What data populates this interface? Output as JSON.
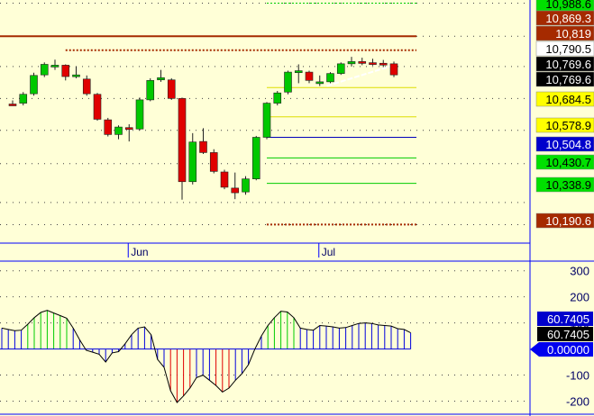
{
  "chart_data": [
    {
      "type": "candlestick",
      "x_ticks": [
        "Jun",
        "Jul"
      ],
      "ylim": [
        10130,
        11000
      ],
      "grid": true,
      "candles": [
        {
          "o": 10625,
          "h": 10638,
          "l": 10618,
          "c": 10622
        },
        {
          "o": 10628,
          "h": 10668,
          "l": 10620,
          "c": 10660
        },
        {
          "o": 10662,
          "h": 10738,
          "l": 10655,
          "c": 10728
        },
        {
          "o": 10730,
          "h": 10775,
          "l": 10722,
          "c": 10768
        },
        {
          "o": 10762,
          "h": 10785,
          "l": 10748,
          "c": 10765
        },
        {
          "o": 10765,
          "h": 10768,
          "l": 10710,
          "c": 10724
        },
        {
          "o": 10726,
          "h": 10760,
          "l": 10718,
          "c": 10730
        },
        {
          "o": 10715,
          "h": 10728,
          "l": 10655,
          "c": 10662
        },
        {
          "o": 10660,
          "h": 10665,
          "l": 10565,
          "c": 10570
        },
        {
          "o": 10568,
          "h": 10575,
          "l": 10508,
          "c": 10515
        },
        {
          "o": 10515,
          "h": 10548,
          "l": 10498,
          "c": 10542
        },
        {
          "o": 10540,
          "h": 10552,
          "l": 10490,
          "c": 10535
        },
        {
          "o": 10535,
          "h": 10648,
          "l": 10530,
          "c": 10640
        },
        {
          "o": 10640,
          "h": 10718,
          "l": 10635,
          "c": 10710
        },
        {
          "o": 10712,
          "h": 10748,
          "l": 10705,
          "c": 10720
        },
        {
          "o": 10712,
          "h": 10718,
          "l": 10640,
          "c": 10645
        },
        {
          "o": 10645,
          "h": 10648,
          "l": 10280,
          "c": 10345
        },
        {
          "o": 10345,
          "h": 10520,
          "l": 10335,
          "c": 10488
        },
        {
          "o": 10490,
          "h": 10538,
          "l": 10445,
          "c": 10450
        },
        {
          "o": 10450,
          "h": 10462,
          "l": 10375,
          "c": 10382
        },
        {
          "o": 10380,
          "h": 10388,
          "l": 10318,
          "c": 10325
        },
        {
          "o": 10322,
          "h": 10378,
          "l": 10282,
          "c": 10305
        },
        {
          "o": 10308,
          "h": 10365,
          "l": 10298,
          "c": 10355
        },
        {
          "o": 10355,
          "h": 10510,
          "l": 10350,
          "c": 10505
        },
        {
          "o": 10505,
          "h": 10632,
          "l": 10498,
          "c": 10628
        },
        {
          "o": 10628,
          "h": 10672,
          "l": 10620,
          "c": 10665
        },
        {
          "o": 10668,
          "h": 10745,
          "l": 10660,
          "c": 10740
        },
        {
          "o": 10738,
          "h": 10768,
          "l": 10700,
          "c": 10745
        },
        {
          "o": 10740,
          "h": 10745,
          "l": 10700,
          "c": 10710
        },
        {
          "o": 10705,
          "h": 10728,
          "l": 10690,
          "c": 10705
        },
        {
          "o": 10705,
          "h": 10740,
          "l": 10700,
          "c": 10735
        },
        {
          "o": 10735,
          "h": 10775,
          "l": 10730,
          "c": 10770
        },
        {
          "o": 10770,
          "h": 10795,
          "l": 10760,
          "c": 10778
        },
        {
          "o": 10778,
          "h": 10792,
          "l": 10765,
          "c": 10774
        },
        {
          "o": 10774,
          "h": 10788,
          "l": 10764,
          "c": 10770
        },
        {
          "o": 10772,
          "h": 10784,
          "l": 10758,
          "c": 10769
        },
        {
          "o": 10770,
          "h": 10778,
          "l": 10722,
          "c": 10730
        }
      ],
      "price_tags": [
        {
          "value": "10,988.6",
          "bg": "#00e000",
          "fg": "#000000"
        },
        {
          "value": "10,869.3",
          "bg": "#a52a00",
          "fg": "#ffffff"
        },
        {
          "value": "10,819",
          "bg": "#a52a00",
          "fg": "#ffffff"
        },
        {
          "value": "10,790.5",
          "bg": "#ffffff",
          "fg": "#000000"
        },
        {
          "value": "10,769.6",
          "bg": "#000000",
          "fg": "#ffffff"
        },
        {
          "value": "10,769.6",
          "bg": "#000000",
          "fg": "#ffffff"
        },
        {
          "value": "10,684.5",
          "bg": "#ffff00",
          "fg": "#000000"
        },
        {
          "value": "10,578.9",
          "bg": "#ffff00",
          "fg": "#000000"
        },
        {
          "value": "10,504.8",
          "bg": "#0000cc",
          "fg": "#ffffff"
        },
        {
          "value": "10,430.7",
          "bg": "#00e000",
          "fg": "#000000"
        },
        {
          "value": "10,338.9",
          "bg": "#00e000",
          "fg": "#000000"
        },
        {
          "value": "10,190.6",
          "bg": "#a52a00",
          "fg": "#ffffff"
        }
      ],
      "colors": {
        "up": "#00c800",
        "down": "#e00000",
        "background": "#ffffd7",
        "axis": "#0000ff"
      }
    },
    {
      "type": "histogram",
      "ylim": [
        -250,
        330
      ],
      "y_ticks": [
        "300",
        "200",
        "100",
        "-100",
        "-200"
      ],
      "histogram": [
        80,
        75,
        70,
        72,
        95,
        120,
        140,
        148,
        138,
        128,
        118,
        80,
        35,
        -5,
        -12,
        -20,
        -50,
        -15,
        -10,
        20,
        55,
        80,
        85,
        55,
        -40,
        -70,
        -160,
        -205,
        -180,
        -150,
        -110,
        -100,
        -120,
        -140,
        -165,
        -150,
        -120,
        -95,
        -60,
        0,
        50,
        90,
        120,
        145,
        142,
        120,
        80,
        75,
        72,
        90,
        88,
        85,
        80,
        82,
        90,
        98,
        100,
        98,
        92,
        90,
        88,
        78,
        75,
        62
      ],
      "value_tags": [
        {
          "value": "60.7405",
          "bg": "#0000cc",
          "fg": "#ffffff"
        },
        {
          "value": "60.7405",
          "bg": "#000000",
          "fg": "#ffffff"
        },
        {
          "value": "0.00000",
          "bg": "#0000ee",
          "fg": "#ffffff"
        }
      ],
      "colors": {
        "positive": "#0000dd",
        "up_strong": "#00cc00",
        "down_strong": "#e00000",
        "line": "#000000"
      }
    }
  ]
}
